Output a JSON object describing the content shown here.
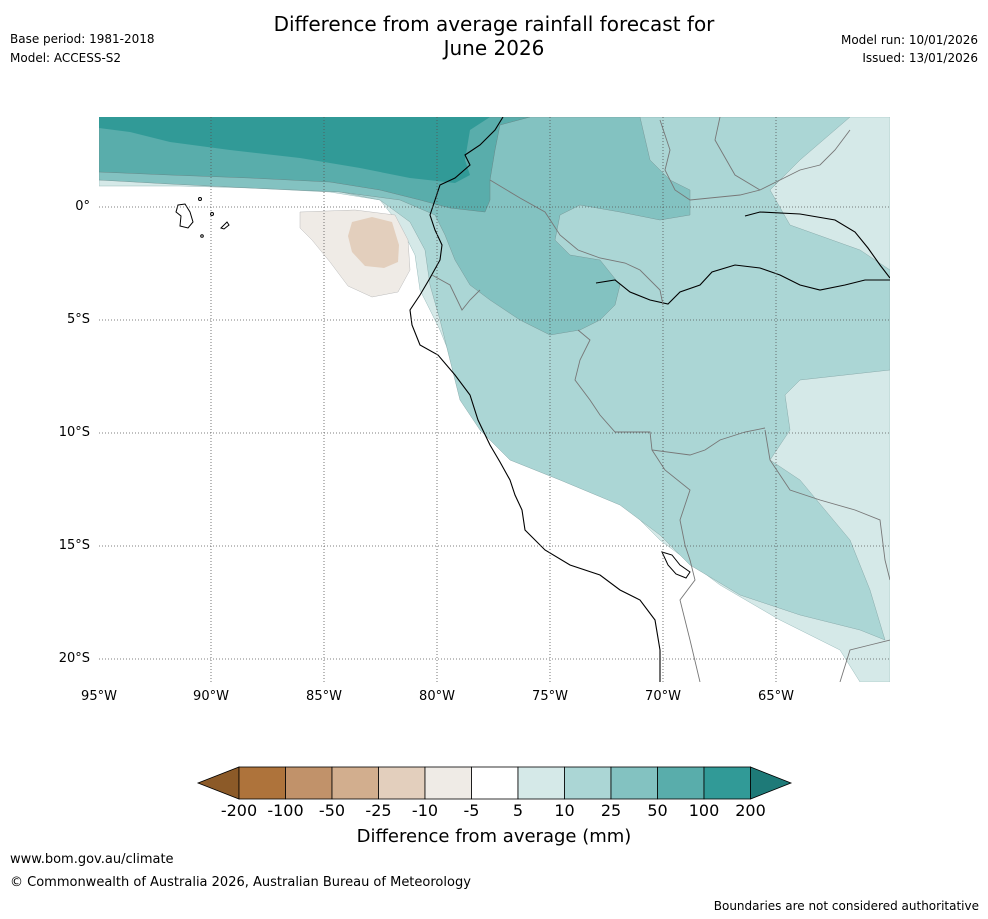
{
  "header": {
    "title_line1": "Difference from average rainfall forecast for",
    "title_line2": "June 2026",
    "base_period": "Base period: 1981-2018",
    "model": "Model: ACCESS-S2",
    "model_run": "Model run: 10/01/2026",
    "issued": "Issued: 13/01/2026"
  },
  "map": {
    "lat_labels": [
      "0°",
      "5°S",
      "10°S",
      "15°S",
      "20°S"
    ],
    "lon_labels": [
      "95°W",
      "90°W",
      "85°W",
      "80°W",
      "75°W",
      "70°W",
      "65°W"
    ]
  },
  "colorbar": {
    "title": "Difference from average (mm)",
    "tick_labels": [
      "-200",
      "-100",
      "-50",
      "-25",
      "-10",
      "-5",
      "5",
      "10",
      "25",
      "50",
      "100",
      "200"
    ],
    "colors": [
      "#8c5a28",
      "#ae733b",
      "#c1926a",
      "#d2ae8e",
      "#e3cfbd",
      "#efebe6",
      "#ffffff",
      "#d5e9e8",
      "#abd6d5",
      "#83c2c1",
      "#59adab",
      "#319a97",
      "#1e7a78"
    ]
  },
  "footer": {
    "website": "www.bom.gov.au/climate",
    "copyright": "© Commonwealth of Australia 2026, Australian Bureau of Meteorology",
    "disclaimer": "Boundaries are not considered authoritative"
  }
}
